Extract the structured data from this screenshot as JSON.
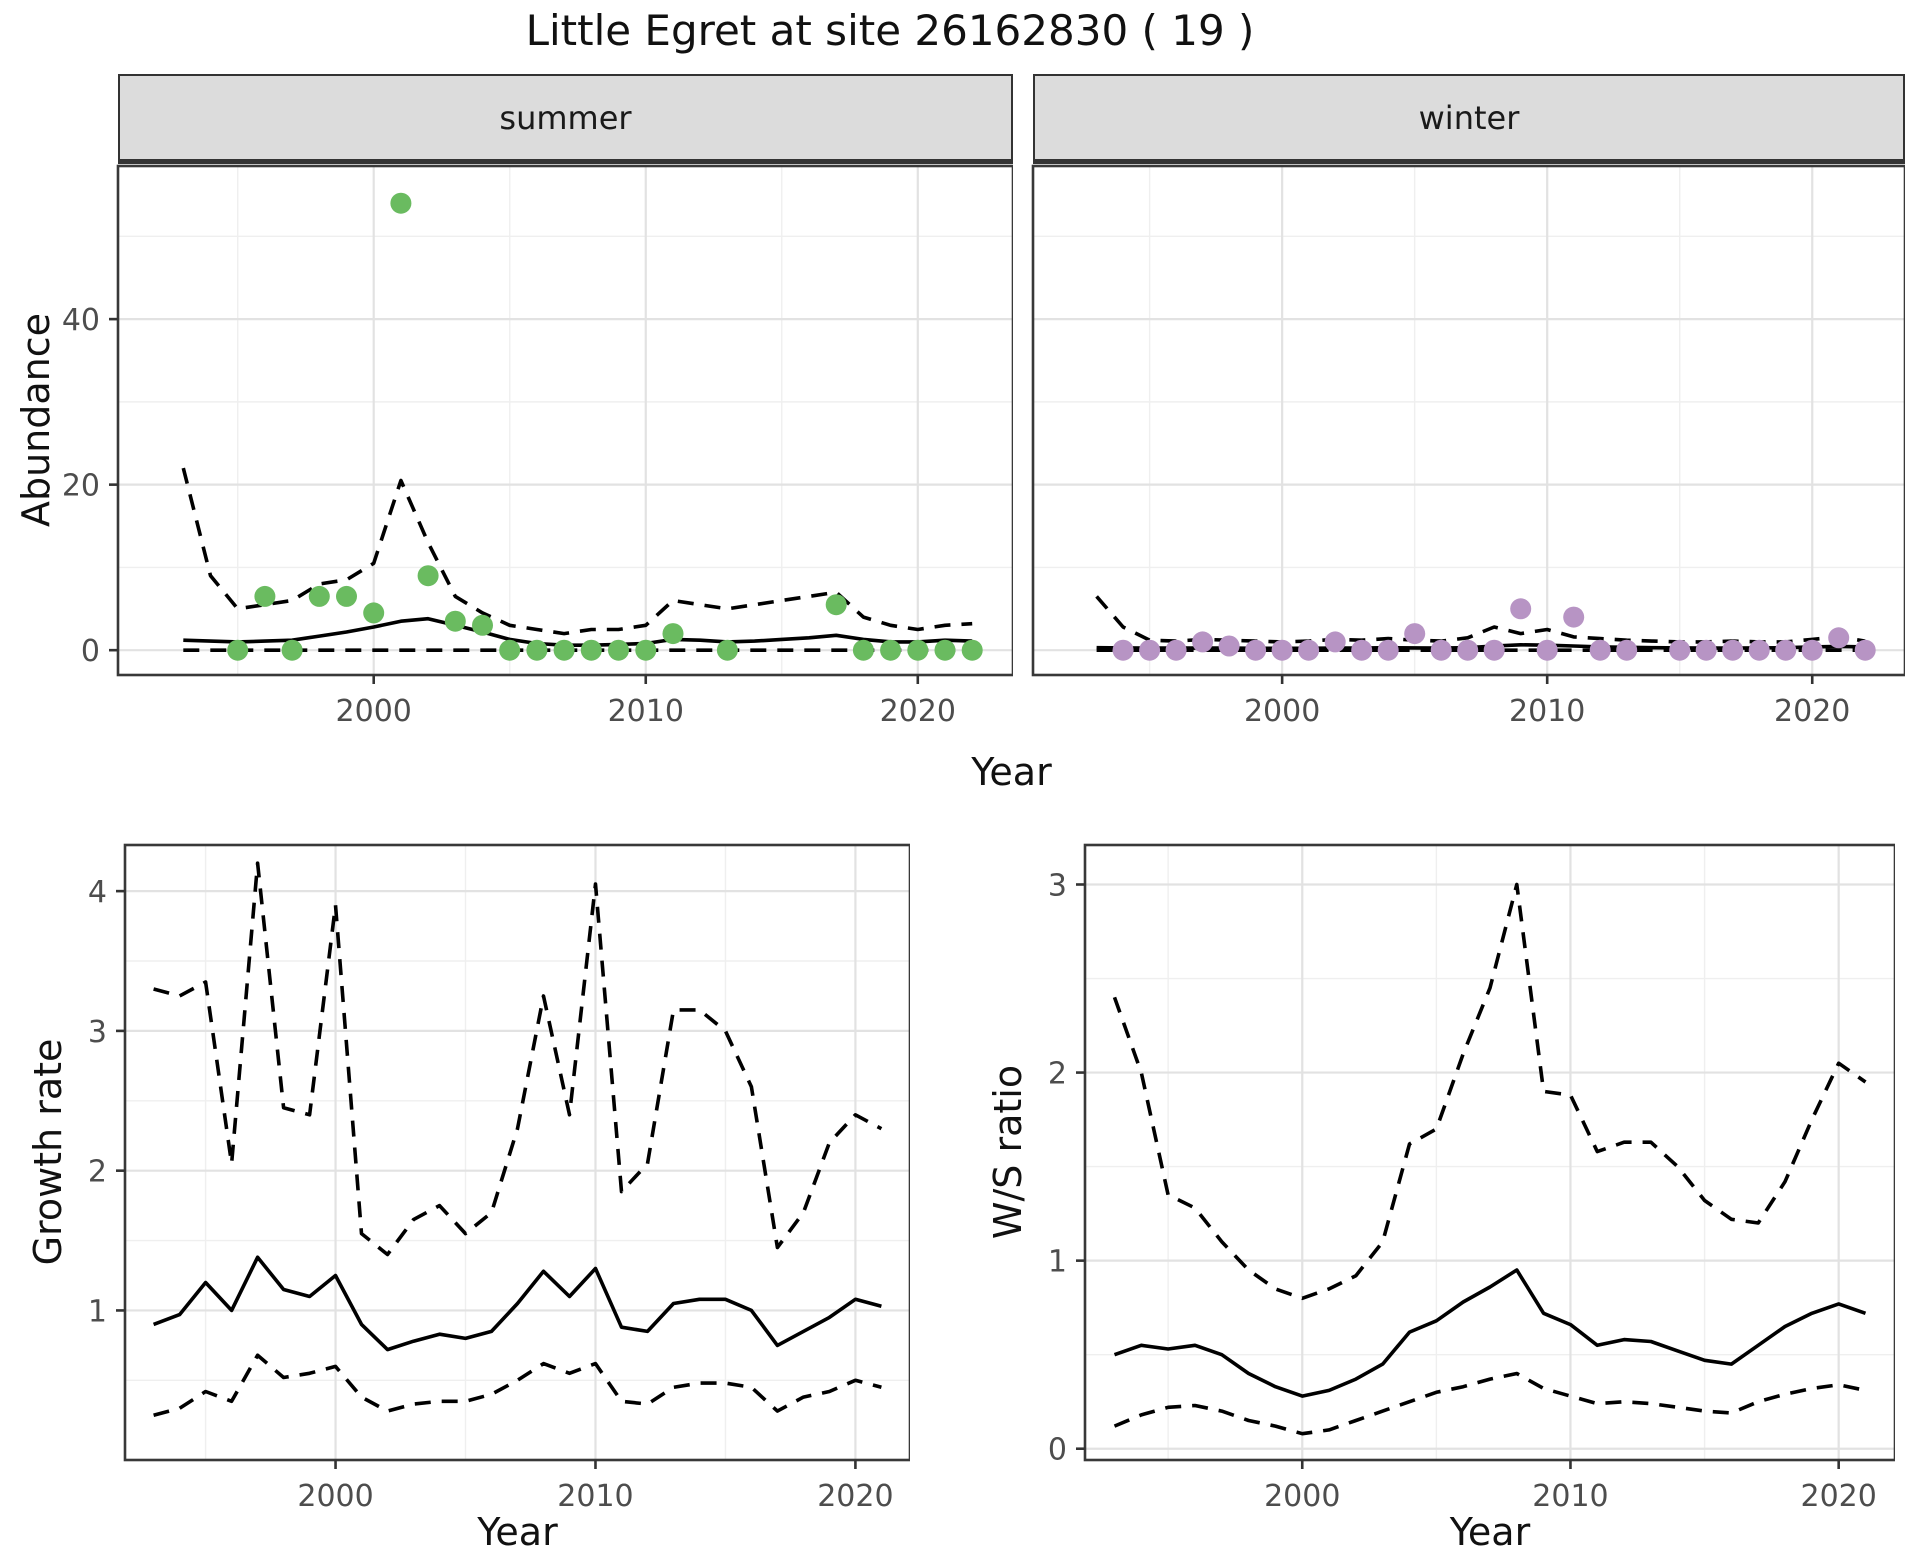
{
  "title": "Little Egret at site 26162830 ( 19 )",
  "labels": {
    "summer": "summer",
    "winter": "winter",
    "abundance": "Abundance",
    "year": "Year",
    "growth": "Growth rate",
    "ws": "W/S ratio"
  },
  "colors": {
    "summer_point": "#6ABB60",
    "winter_point": "#B794C4",
    "line": "#000000",
    "grid_major": "#e2e2e2",
    "grid_minor": "#efefef",
    "axis_text": "#4d4d4d",
    "strip_bg": "#dcdcdc",
    "panel_border": "#383838"
  },
  "chart_data": [
    {
      "id": "abundance_summer",
      "type": "scatter",
      "facet": "summer",
      "xlabel": "Year",
      "ylabel": "Abundance",
      "xlim": [
        1990.6,
        2023.5
      ],
      "ylim": [
        -3,
        58.5
      ],
      "xticks": [
        2000,
        2010,
        2020
      ],
      "xticks_minor": [
        1995,
        2005,
        2015
      ],
      "yticks": [
        0,
        20,
        40
      ],
      "yticks_minor": [
        10,
        30,
        50
      ],
      "point_color": "#6ABB60",
      "points": {
        "x": [
          1995,
          1996,
          1997,
          1998,
          1999,
          2000,
          2001,
          2002,
          2003,
          2004,
          2005,
          2006,
          2007,
          2008,
          2009,
          2010,
          2011,
          2013,
          2017,
          2018,
          2019,
          2020,
          2021,
          2022
        ],
        "y": [
          0,
          6.5,
          0,
          6.5,
          6.5,
          4.5,
          54,
          9,
          3.5,
          3,
          0,
          0,
          0,
          0,
          0,
          0,
          2,
          0,
          5.5,
          0,
          0,
          0,
          0,
          0
        ]
      },
      "series": [
        {
          "name": "fit",
          "style": "solid",
          "x": [
            1993,
            1994,
            1995,
            1996,
            1997,
            1998,
            1999,
            2000,
            2001,
            2002,
            2003,
            2004,
            2005,
            2006,
            2007,
            2008,
            2009,
            2010,
            2011,
            2012,
            2013,
            2014,
            2015,
            2016,
            2017,
            2018,
            2019,
            2020,
            2021,
            2022
          ],
          "y": [
            1.2,
            1.1,
            1.0,
            1.1,
            1.2,
            1.7,
            2.2,
            2.8,
            3.5,
            3.8,
            3.0,
            2.2,
            1.3,
            0.8,
            0.6,
            0.6,
            0.7,
            0.8,
            1.3,
            1.2,
            1.0,
            1.1,
            1.3,
            1.5,
            1.8,
            1.3,
            1.0,
            1.0,
            1.2,
            1.1
          ]
        },
        {
          "name": "upper_ci",
          "style": "dashed",
          "x": [
            1993,
            1994,
            1995,
            1996,
            1997,
            1998,
            1999,
            2000,
            2001,
            2002,
            2003,
            2004,
            2005,
            2006,
            2007,
            2008,
            2009,
            2010,
            2011,
            2012,
            2013,
            2014,
            2015,
            2016,
            2017,
            2018,
            2019,
            2020,
            2021,
            2022
          ],
          "y": [
            22,
            9,
            5,
            5.5,
            6,
            8,
            8.5,
            10.5,
            20.5,
            13,
            6.5,
            4.5,
            3,
            2.5,
            2,
            2.5,
            2.5,
            3,
            6,
            5.5,
            5,
            5.5,
            6,
            6.5,
            7,
            4,
            3,
            2.5,
            3,
            3.2
          ]
        },
        {
          "name": "lower_ci",
          "style": "dashed",
          "x": [
            1993,
            1994,
            1995,
            1996,
            1997,
            1998,
            1999,
            2000,
            2001,
            2002,
            2003,
            2004,
            2005,
            2006,
            2007,
            2008,
            2009,
            2010,
            2011,
            2012,
            2013,
            2014,
            2015,
            2016,
            2017,
            2018,
            2019,
            2020,
            2021,
            2022
          ],
          "y": [
            0,
            0,
            0,
            0,
            0,
            0,
            0,
            0,
            0,
            0,
            0,
            0,
            0,
            0,
            0,
            0,
            0,
            0,
            0,
            0,
            0,
            0,
            0,
            0,
            0,
            0,
            0,
            0,
            0,
            0
          ]
        }
      ]
    },
    {
      "id": "abundance_winter",
      "type": "scatter",
      "facet": "winter",
      "xlabel": "Year",
      "ylabel": "Abundance",
      "xlim": [
        1990.6,
        2023.5
      ],
      "ylim": [
        -3,
        58.5
      ],
      "xticks": [
        2000,
        2010,
        2020
      ],
      "xticks_minor": [
        1995,
        2005,
        2015
      ],
      "yticks": [
        0,
        20,
        40
      ],
      "yticks_minor": [
        10,
        30,
        50
      ],
      "point_color": "#B794C4",
      "points": {
        "x": [
          1994,
          1995,
          1996,
          1997,
          1998,
          1999,
          2000,
          2001,
          2002,
          2003,
          2004,
          2005,
          2006,
          2007,
          2008,
          2009,
          2010,
          2011,
          2012,
          2013,
          2015,
          2016,
          2017,
          2018,
          2019,
          2020,
          2021,
          2022
        ],
        "y": [
          0,
          0,
          0,
          1,
          0.5,
          0,
          0,
          0,
          1,
          0,
          0,
          2,
          0,
          0,
          0,
          5,
          0,
          4,
          0,
          0,
          0,
          0,
          0,
          0,
          0,
          0,
          1.5,
          0
        ]
      },
      "series": [
        {
          "name": "fit",
          "style": "solid",
          "x": [
            1993,
            1994,
            1995,
            1996,
            1997,
            1998,
            1999,
            2000,
            2001,
            2002,
            2003,
            2004,
            2005,
            2006,
            2007,
            2008,
            2009,
            2010,
            2011,
            2012,
            2013,
            2014,
            2015,
            2016,
            2017,
            2018,
            2019,
            2020,
            2021,
            2022
          ],
          "y": [
            0.3,
            0.28,
            0.25,
            0.25,
            0.25,
            0.25,
            0.22,
            0.22,
            0.22,
            0.25,
            0.25,
            0.3,
            0.28,
            0.25,
            0.3,
            0.5,
            0.65,
            0.6,
            0.5,
            0.4,
            0.35,
            0.3,
            0.28,
            0.25,
            0.25,
            0.28,
            0.3,
            0.4,
            0.45,
            0.4
          ]
        },
        {
          "name": "upper_ci",
          "style": "dashed",
          "x": [
            1993,
            1994,
            1995,
            1996,
            1997,
            1998,
            1999,
            2000,
            2001,
            2002,
            2003,
            2004,
            2005,
            2006,
            2007,
            2008,
            2009,
            2010,
            2011,
            2012,
            2013,
            2014,
            2015,
            2016,
            2017,
            2018,
            2019,
            2020,
            2021,
            2022
          ],
          "y": [
            6.5,
            2.8,
            1.2,
            1.1,
            1.3,
            1.2,
            1.1,
            1.0,
            1.1,
            1.3,
            1.2,
            1.4,
            1.2,
            1.1,
            1.5,
            2.8,
            2.0,
            2.5,
            1.6,
            1.4,
            1.2,
            1.1,
            1.0,
            1.0,
            1.1,
            1.0,
            1.0,
            1.3,
            1.6,
            1.1
          ]
        },
        {
          "name": "lower_ci",
          "style": "dashed",
          "x": [
            1993,
            1994,
            1995,
            1996,
            1997,
            1998,
            1999,
            2000,
            2001,
            2002,
            2003,
            2004,
            2005,
            2006,
            2007,
            2008,
            2009,
            2010,
            2011,
            2012,
            2013,
            2014,
            2015,
            2016,
            2017,
            2018,
            2019,
            2020,
            2021,
            2022
          ],
          "y": [
            0,
            0,
            0,
            0,
            0,
            0,
            0,
            0,
            0,
            0,
            0,
            0,
            0,
            0,
            0,
            0,
            0,
            0,
            0,
            0,
            0,
            0,
            0,
            0,
            0,
            0,
            0,
            0,
            0,
            0
          ]
        }
      ]
    },
    {
      "id": "growth_rate",
      "type": "line",
      "xlabel": "Year",
      "ylabel": "Growth rate",
      "xlim": [
        1991.9,
        2022.1
      ],
      "ylim": [
        -0.07,
        4.33
      ],
      "xticks": [
        2000,
        2010,
        2020
      ],
      "xticks_minor": [
        1995,
        2005,
        2015
      ],
      "yticks": [
        1,
        2,
        3,
        4
      ],
      "yticks_minor": [
        0.5,
        1.5,
        2.5,
        3.5
      ],
      "series": [
        {
          "name": "fit",
          "style": "solid",
          "x": [
            1993,
            1994,
            1995,
            1996,
            1997,
            1998,
            1999,
            2000,
            2001,
            2002,
            2003,
            2004,
            2005,
            2006,
            2007,
            2008,
            2009,
            2010,
            2011,
            2012,
            2013,
            2014,
            2015,
            2016,
            2017,
            2018,
            2019,
            2020,
            2021
          ],
          "y": [
            0.9,
            0.97,
            1.2,
            1.0,
            1.38,
            1.15,
            1.1,
            1.25,
            0.9,
            0.72,
            0.78,
            0.83,
            0.8,
            0.85,
            1.05,
            1.28,
            1.1,
            1.3,
            0.88,
            0.85,
            1.05,
            1.08,
            1.08,
            1.0,
            0.75,
            0.85,
            0.95,
            1.08,
            1.03
          ]
        },
        {
          "name": "upper_ci",
          "style": "dashed",
          "x": [
            1993,
            1994,
            1995,
            1996,
            1997,
            1998,
            1999,
            2000,
            2001,
            2002,
            2003,
            2004,
            2005,
            2006,
            2007,
            2008,
            2009,
            2010,
            2011,
            2012,
            2013,
            2014,
            2015,
            2016,
            2017,
            2018,
            2019,
            2020,
            2021
          ],
          "y": [
            3.3,
            3.25,
            3.35,
            2.05,
            4.2,
            2.45,
            2.4,
            3.9,
            1.55,
            1.4,
            1.65,
            1.75,
            1.55,
            1.7,
            2.3,
            3.25,
            2.4,
            4.05,
            1.85,
            2.05,
            3.15,
            3.15,
            3.0,
            2.6,
            1.45,
            1.7,
            2.2,
            2.4,
            2.3
          ]
        },
        {
          "name": "lower_ci",
          "style": "dashed",
          "x": [
            1993,
            1994,
            1995,
            1996,
            1997,
            1998,
            1999,
            2000,
            2001,
            2002,
            2003,
            2004,
            2005,
            2006,
            2007,
            2008,
            2009,
            2010,
            2011,
            2012,
            2013,
            2014,
            2015,
            2016,
            2017,
            2018,
            2019,
            2020,
            2021
          ],
          "y": [
            0.25,
            0.3,
            0.42,
            0.35,
            0.68,
            0.52,
            0.55,
            0.6,
            0.38,
            0.28,
            0.33,
            0.35,
            0.35,
            0.4,
            0.5,
            0.62,
            0.55,
            0.62,
            0.35,
            0.33,
            0.45,
            0.48,
            0.48,
            0.45,
            0.28,
            0.38,
            0.42,
            0.5,
            0.45
          ]
        }
      ]
    },
    {
      "id": "ws_ratio",
      "type": "line",
      "xlabel": "Year",
      "ylabel": "W/S ratio",
      "xlim": [
        1991.9,
        2022.1
      ],
      "ylim": [
        -0.06,
        3.21
      ],
      "xticks": [
        2000,
        2010,
        2020
      ],
      "xticks_minor": [
        1995,
        2005,
        2015
      ],
      "yticks": [
        0,
        1,
        2,
        3
      ],
      "yticks_minor": [
        0.5,
        1.5,
        2.5
      ],
      "series": [
        {
          "name": "fit",
          "style": "solid",
          "x": [
            1993,
            1994,
            1995,
            1996,
            1997,
            1998,
            1999,
            2000,
            2001,
            2002,
            2003,
            2004,
            2005,
            2006,
            2007,
            2008,
            2009,
            2010,
            2011,
            2012,
            2013,
            2014,
            2015,
            2016,
            2017,
            2018,
            2019,
            2020,
            2021
          ],
          "y": [
            0.5,
            0.55,
            0.53,
            0.55,
            0.5,
            0.4,
            0.33,
            0.28,
            0.31,
            0.37,
            0.45,
            0.62,
            0.68,
            0.78,
            0.86,
            0.95,
            0.72,
            0.66,
            0.55,
            0.58,
            0.57,
            0.52,
            0.47,
            0.45,
            0.55,
            0.65,
            0.72,
            0.77,
            0.72
          ]
        },
        {
          "name": "upper_ci",
          "style": "dashed",
          "x": [
            1993,
            1994,
            1995,
            1996,
            1997,
            1998,
            1999,
            2000,
            2001,
            2002,
            2003,
            2004,
            2005,
            2006,
            2007,
            2008,
            2009,
            2010,
            2011,
            2012,
            2013,
            2014,
            2015,
            2016,
            2017,
            2018,
            2019,
            2020,
            2021
          ],
          "y": [
            2.4,
            2.0,
            1.35,
            1.28,
            1.1,
            0.95,
            0.85,
            0.8,
            0.85,
            0.92,
            1.1,
            1.62,
            1.7,
            2.1,
            2.45,
            3.0,
            1.9,
            1.88,
            1.58,
            1.63,
            1.63,
            1.5,
            1.32,
            1.22,
            1.2,
            1.42,
            1.75,
            2.05,
            1.95
          ]
        },
        {
          "name": "lower_ci",
          "style": "dashed",
          "x": [
            1993,
            1994,
            1995,
            1996,
            1997,
            1998,
            1999,
            2000,
            2001,
            2002,
            2003,
            2004,
            2005,
            2006,
            2007,
            2008,
            2009,
            2010,
            2011,
            2012,
            2013,
            2014,
            2015,
            2016,
            2017,
            2018,
            2019,
            2020,
            2021
          ],
          "y": [
            0.12,
            0.18,
            0.22,
            0.23,
            0.2,
            0.15,
            0.12,
            0.08,
            0.1,
            0.15,
            0.2,
            0.25,
            0.3,
            0.33,
            0.37,
            0.4,
            0.32,
            0.28,
            0.24,
            0.25,
            0.24,
            0.22,
            0.2,
            0.19,
            0.25,
            0.29,
            0.32,
            0.34,
            0.31
          ]
        }
      ]
    }
  ]
}
